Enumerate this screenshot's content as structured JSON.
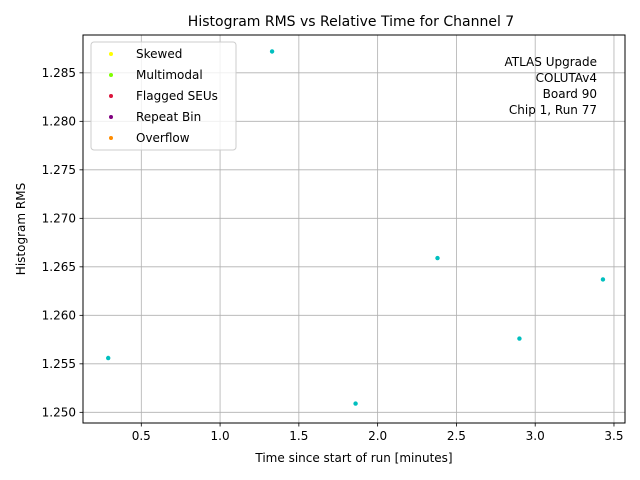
{
  "chart_data": {
    "type": "scatter",
    "title": "Histogram RMS vs Relative Time for Channel 7",
    "xlabel": "Time since start of run [minutes]",
    "ylabel": "Histogram RMS",
    "xlim": [
      0.13,
      3.57
    ],
    "ylim": [
      1.2489,
      1.2889
    ],
    "xticks": [
      0.5,
      1.0,
      1.5,
      2.0,
      2.5,
      3.0,
      3.5
    ],
    "xtick_labels": [
      "0.5",
      "1.0",
      "1.5",
      "2.0",
      "2.5",
      "3.0",
      "3.5"
    ],
    "yticks": [
      1.25,
      1.255,
      1.26,
      1.265,
      1.27,
      1.275,
      1.28,
      1.285
    ],
    "ytick_labels": [
      "1.250",
      "1.255",
      "1.260",
      "1.265",
      "1.270",
      "1.275",
      "1.280",
      "1.285"
    ],
    "grid": true,
    "legend_position": "top-left",
    "legend": [
      {
        "label": "Skewed",
        "color": "#ffff00"
      },
      {
        "label": "Multimodal",
        "color": "#7fff00"
      },
      {
        "label": "Flagged SEUs",
        "color": "#dc143c"
      },
      {
        "label": "Repeat Bin",
        "color": "#800080"
      },
      {
        "label": "Overflow",
        "color": "#ff8c00"
      }
    ],
    "annotation_lines": [
      "ATLAS Upgrade",
      "COLUTAv4",
      "Board 90",
      "Chip 1, Run 77"
    ],
    "point_color": "#00bfbf",
    "points": [
      {
        "x": 0.29,
        "y": 1.2556
      },
      {
        "x": 1.33,
        "y": 1.2872
      },
      {
        "x": 1.86,
        "y": 1.2509
      },
      {
        "x": 2.38,
        "y": 1.2659
      },
      {
        "x": 2.9,
        "y": 1.2576
      },
      {
        "x": 3.43,
        "y": 1.2637
      }
    ]
  }
}
